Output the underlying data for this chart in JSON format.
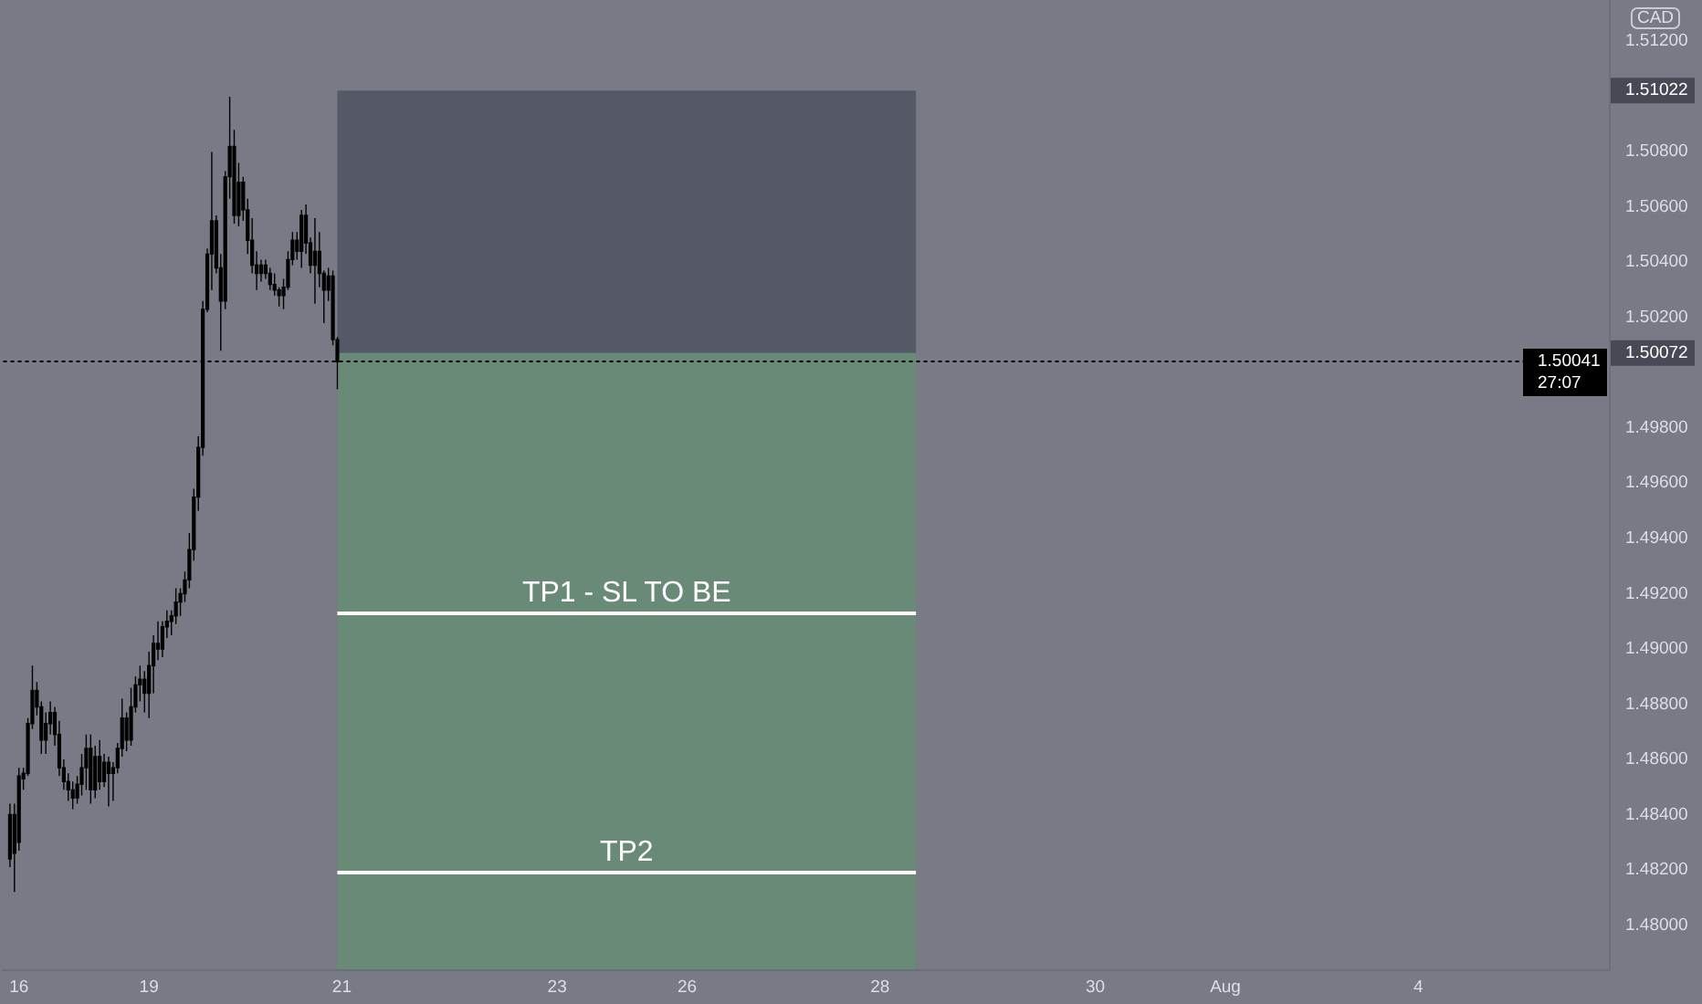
{
  "chart_data": {
    "type": "candlestick",
    "ylabel": "CAD",
    "categories": [
      null,
      null,
      null,
      "16",
      null,
      null,
      null,
      null,
      null,
      null,
      null,
      null,
      null,
      null,
      null,
      null,
      null,
      null,
      null,
      null,
      null,
      null,
      null,
      null,
      null,
      null,
      null,
      null,
      null,
      null,
      null,
      null,
      "19",
      null,
      null,
      null,
      null,
      null,
      null,
      null,
      null,
      null,
      null,
      null,
      null,
      null,
      null,
      null,
      null,
      null,
      null,
      null,
      null,
      null,
      null,
      null,
      null,
      null,
      null,
      null,
      null,
      null,
      null,
      null,
      null,
      null,
      null,
      null,
      null,
      null,
      null,
      null,
      null,
      null,
      null,
      "21",
      null,
      null,
      null,
      null,
      null,
      null,
      null,
      null,
      null,
      null,
      null,
      null,
      null,
      null,
      null,
      null,
      null,
      null,
      null,
      null,
      null,
      null,
      null,
      null,
      null,
      null,
      null,
      null,
      null,
      null,
      null,
      null,
      null,
      null,
      null,
      null,
      null,
      null,
      null,
      null,
      null,
      null,
      null,
      null,
      null,
      null,
      null,
      "23",
      null,
      null,
      null,
      null,
      null,
      null,
      null,
      null,
      null,
      null,
      null,
      null,
      null,
      null,
      null,
      null,
      null,
      null,
      null,
      null,
      null,
      null,
      null,
      null,
      null,
      null,
      null,
      null,
      "26",
      null,
      null,
      null,
      null,
      null,
      null,
      null,
      null,
      null,
      null,
      null,
      null,
      null,
      null,
      null,
      null,
      null,
      null,
      null,
      null,
      null,
      null,
      null,
      null,
      null,
      null,
      null,
      null,
      null,
      null,
      null,
      null,
      null,
      null,
      null,
      null,
      null,
      null,
      null,
      null,
      null,
      null,
      "28",
      null,
      null,
      null,
      null,
      null,
      null,
      null,
      null,
      null,
      null,
      null,
      null,
      null,
      null,
      null,
      null,
      null,
      null,
      null,
      null,
      null,
      null,
      null,
      null,
      null,
      null,
      null,
      null,
      null,
      null,
      null,
      null,
      null,
      null,
      null,
      null,
      null,
      null,
      null,
      null,
      null,
      null,
      null,
      null,
      null,
      null,
      null,
      "30",
      null,
      null,
      null,
      null,
      null,
      null,
      null,
      null,
      null,
      null,
      null,
      null,
      null,
      null,
      null,
      null,
      null,
      null,
      null,
      null,
      null,
      null,
      null,
      null,
      null,
      null,
      null,
      null,
      "Aug",
      null,
      null,
      null,
      null,
      null,
      null,
      null,
      null,
      null,
      null,
      null,
      null,
      null,
      null,
      null,
      null,
      null,
      null,
      null,
      null,
      null,
      null,
      null,
      null,
      null,
      null,
      null,
      null,
      null,
      null,
      null,
      null,
      null,
      null,
      null,
      null,
      null,
      null,
      null,
      null,
      null,
      null,
      "4",
      null,
      null,
      null,
      null,
      null,
      null,
      null,
      null,
      null,
      null,
      null,
      null,
      null,
      null,
      null,
      null,
      null,
      null,
      null,
      null,
      null,
      null,
      null,
      null,
      null,
      null,
      null,
      null,
      null,
      null,
      null,
      null,
      null,
      null,
      null,
      null,
      null,
      null,
      null,
      null,
      null,
      null
    ],
    "ohlc": [
      null,
      [
        1.4824,
        1.4844,
        1.4821,
        1.484
      ],
      [
        1.484,
        1.4844,
        1.4812,
        1.4826
      ],
      [
        1.483,
        1.4857,
        1.4827,
        1.4854
      ],
      [
        1.4853,
        1.4857,
        1.4849,
        1.4855
      ],
      [
        1.4855,
        1.4875,
        1.4854,
        1.4873
      ],
      [
        1.4873,
        1.4894,
        1.4871,
        1.4885
      ],
      [
        1.4885,
        1.4888,
        1.4876,
        1.4879
      ],
      [
        1.4879,
        1.4881,
        1.4862,
        1.4867
      ],
      [
        1.4867,
        1.4877,
        1.4862,
        1.4873
      ],
      [
        1.4873,
        1.4881,
        1.4869,
        1.4877
      ],
      [
        1.4877,
        1.4879,
        1.4865,
        1.4869
      ],
      [
        1.4869,
        1.4874,
        1.4854,
        1.4857
      ],
      [
        1.4857,
        1.486,
        1.4849,
        1.4852
      ],
      [
        1.4852,
        1.4855,
        1.4845,
        1.4849
      ],
      [
        1.4849,
        1.4852,
        1.4842,
        1.4846
      ],
      [
        1.4846,
        1.4854,
        1.4844,
        1.4851
      ],
      [
        1.4851,
        1.4862,
        1.4847,
        1.4857
      ],
      [
        1.4857,
        1.4869,
        1.4849,
        1.4864
      ],
      [
        1.4864,
        1.4869,
        1.4844,
        1.4849
      ],
      [
        1.4849,
        1.4865,
        1.4846,
        1.4861
      ],
      [
        1.4861,
        1.4867,
        1.4849,
        1.4852
      ],
      [
        1.4852,
        1.4862,
        1.485,
        1.4859
      ],
      [
        1.4859,
        1.4861,
        1.4843,
        1.4855
      ],
      [
        1.4855,
        1.4859,
        1.4845,
        1.4857
      ],
      [
        1.4857,
        1.4866,
        1.4855,
        1.4864
      ],
      [
        1.4864,
        1.4882,
        1.4861,
        1.4875
      ],
      [
        1.4875,
        1.4877,
        1.4863,
        1.4867
      ],
      [
        1.4867,
        1.4886,
        1.4865,
        1.4879
      ],
      [
        1.4879,
        1.489,
        1.4877,
        1.4887
      ],
      [
        1.4887,
        1.4894,
        1.4881,
        1.4889
      ],
      [
        1.4889,
        1.4892,
        1.4877,
        1.4884
      ],
      [
        1.4884,
        1.4899,
        1.4875,
        1.4894
      ],
      [
        1.4894,
        1.4905,
        1.4884,
        1.4902
      ],
      [
        1.4902,
        1.491,
        1.4896,
        1.49
      ],
      [
        1.49,
        1.491,
        1.4897,
        1.4908
      ],
      [
        1.4908,
        1.4914,
        1.4904,
        1.491
      ],
      [
        1.491,
        1.4914,
        1.4905,
        1.4912
      ],
      [
        1.4912,
        1.4922,
        1.4909,
        1.4917
      ],
      [
        1.4917,
        1.4922,
        1.4912,
        1.492
      ],
      [
        1.492,
        1.4928,
        1.4917,
        1.4925
      ],
      [
        1.4925,
        1.4942,
        1.4922,
        1.4936
      ],
      [
        1.4936,
        1.4958,
        1.4932,
        1.4955
      ],
      [
        1.4955,
        1.4977,
        1.495,
        1.4973
      ],
      [
        1.4973,
        1.5026,
        1.497,
        1.5023
      ],
      [
        1.5023,
        1.5045,
        1.5022,
        1.5043
      ],
      [
        1.5043,
        1.508,
        1.503,
        1.5055
      ],
      [
        1.5055,
        1.5057,
        1.5036,
        1.5038
      ],
      [
        1.5038,
        1.5043,
        1.5008,
        1.5026
      ],
      [
        1.5026,
        1.5073,
        1.5023,
        1.5071
      ],
      [
        1.5071,
        1.51,
        1.5063,
        1.5082
      ],
      [
        1.5082,
        1.5088,
        1.5054,
        1.5057
      ],
      [
        1.5057,
        1.5076,
        1.5053,
        1.5069
      ],
      [
        1.5069,
        1.5071,
        1.5055,
        1.5059
      ],
      [
        1.5059,
        1.5063,
        1.5043,
        1.5048
      ],
      [
        1.5048,
        1.5056,
        1.5036,
        1.5039
      ],
      [
        1.5039,
        1.5044,
        1.503,
        1.5036
      ],
      [
        1.5036,
        1.5041,
        1.5033,
        1.5039
      ],
      [
        1.5039,
        1.5041,
        1.5034,
        1.5036
      ],
      [
        1.5036,
        1.5038,
        1.503,
        1.5032
      ],
      [
        1.5032,
        1.5036,
        1.5028,
        1.503
      ],
      [
        1.503,
        1.5031,
        1.5024,
        1.5028
      ],
      [
        1.5028,
        1.5034,
        1.5023,
        1.5031
      ],
      [
        1.5031,
        1.5044,
        1.503,
        1.5041
      ],
      [
        1.5041,
        1.5051,
        1.5039,
        1.5048
      ],
      [
        1.5048,
        1.5051,
        1.5041,
        1.5044
      ],
      [
        1.5044,
        1.5059,
        1.5038,
        1.5057
      ],
      [
        1.5057,
        1.5061,
        1.5043,
        1.5047
      ],
      [
        1.5047,
        1.5049,
        1.5036,
        1.5039
      ],
      [
        1.5039,
        1.5056,
        1.5025,
        1.5044
      ],
      [
        1.5044,
        1.5051,
        1.5031,
        1.5036
      ],
      [
        1.5036,
        1.5037,
        1.5018,
        1.503
      ],
      [
        1.503,
        1.5038,
        1.5026,
        1.5035
      ],
      [
        1.5035,
        1.5037,
        1.501,
        1.5012
      ],
      [
        1.5012,
        1.5013,
        1.4994,
        1.5004
      ],
      null,
      null,
      null,
      null,
      null,
      null,
      null,
      null,
      null,
      null,
      null,
      null,
      null,
      null,
      null,
      null,
      null,
      null,
      null,
      null,
      null,
      null,
      null,
      null,
      null,
      null,
      null,
      null,
      null,
      null,
      null,
      null,
      null,
      null,
      null,
      null,
      null,
      null,
      null,
      null,
      null,
      null,
      null,
      null,
      null,
      null,
      null,
      null,
      null,
      null,
      null,
      null,
      null,
      null,
      null,
      null,
      null,
      null,
      null,
      null,
      null,
      null,
      null,
      null,
      null,
      null,
      null,
      null,
      null,
      null,
      null,
      null,
      null,
      null,
      null,
      null,
      null,
      null,
      null,
      null,
      null,
      null,
      null,
      null,
      null,
      null,
      null,
      null,
      null,
      null,
      null,
      null,
      null,
      null,
      null,
      null,
      null,
      null,
      null,
      null,
      null,
      null,
      null,
      null,
      null,
      null,
      null,
      null,
      null,
      null,
      null,
      null,
      null,
      null,
      null,
      null,
      null,
      null,
      null,
      null,
      null,
      null,
      null,
      null,
      null,
      null,
      null,
      null,
      null,
      null,
      null,
      null,
      null,
      null,
      null,
      null,
      null,
      null,
      null,
      null,
      null,
      null,
      null,
      null,
      null,
      null,
      null,
      null,
      null,
      null,
      null,
      null,
      null,
      null,
      null,
      null,
      null,
      null,
      null,
      null,
      null,
      null,
      null,
      null,
      null,
      null,
      null,
      null,
      null,
      null,
      null,
      null,
      null,
      null,
      null,
      null,
      null,
      null,
      null,
      null,
      null,
      null,
      null,
      null,
      null,
      null,
      null,
      null,
      null,
      null,
      null,
      null,
      null,
      null,
      null,
      null,
      null,
      null,
      null,
      null,
      null,
      null,
      null,
      null,
      null,
      null,
      null,
      null,
      null,
      null,
      null,
      null,
      null,
      null,
      null,
      null,
      null,
      null,
      null,
      null,
      null,
      null,
      null,
      null,
      null,
      null,
      null,
      null,
      null,
      null,
      null,
      null,
      null,
      null,
      null,
      null,
      null,
      null,
      null,
      null,
      null,
      null,
      null,
      null,
      null,
      null,
      null,
      null,
      null,
      null,
      null,
      null,
      null,
      null,
      null,
      null,
      null,
      null,
      null,
      null,
      null,
      null,
      null,
      null,
      null,
      null,
      null,
      null,
      null,
      null,
      null,
      null,
      null,
      null,
      null,
      null,
      null,
      null,
      null,
      null,
      null,
      null,
      null
    ],
    "color": "#000000",
    "bands": [
      {
        "axis": "y",
        "from": 1.50072,
        "to": 1.51022,
        "color": "#555866"
      },
      {
        "axis": "y",
        "from": 1.4784,
        "to": 1.50072,
        "color": "#6a8a78"
      }
    ],
    "ref_lines": [
      {
        "axis": "y",
        "value": 1.50041,
        "label": "1.50041",
        "line_style": "dotted",
        "color": "#000000"
      },
      {
        "axis": "y",
        "value": 1.4913,
        "label": "TP1 - SL TO BE",
        "line_style": "solid",
        "color": "#ffffff"
      },
      {
        "axis": "y",
        "value": 1.4819,
        "label": "TP2",
        "line_style": "solid",
        "color": "#ffffff"
      }
    ],
    "annotations": [
      "27:07"
    ],
    "ylim": [
      1.4784,
      1.5135
    ],
    "yticks": [
      {
        "value": 1.48,
        "label": "1.48000"
      },
      {
        "value": 1.482,
        "label": "1.48200"
      },
      {
        "value": 1.484,
        "label": "1.48400"
      },
      {
        "value": 1.486,
        "label": "1.48600"
      },
      {
        "value": 1.488,
        "label": "1.48800"
      },
      {
        "value": 1.49,
        "label": "1.49000"
      },
      {
        "value": 1.492,
        "label": "1.49200"
      },
      {
        "value": 1.494,
        "label": "1.49400"
      },
      {
        "value": 1.496,
        "label": "1.49600"
      },
      {
        "value": 1.498,
        "label": "1.49800"
      },
      1.50072,
      {
        "value": 1.502,
        "label": "1.50200"
      },
      {
        "value": 1.504,
        "label": "1.50400"
      },
      {
        "value": 1.506,
        "label": "1.50600"
      },
      {
        "value": 1.508,
        "label": "1.50800"
      },
      1.51022,
      {
        "value": 1.512,
        "label": "1.51200"
      }
    ]
  }
}
